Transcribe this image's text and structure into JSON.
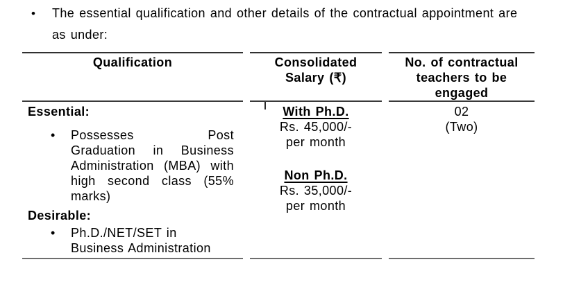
{
  "colors": {
    "text": "#000000",
    "rule_dark": "#303030",
    "rule_light": "#6e6e6e"
  },
  "intro": {
    "bullet": "•",
    "text": "The essential qualification and other details of the contractual appointment are\nas under:"
  },
  "table": {
    "headers": [
      "Qualification",
      "Consolidated\nSalary (₹)",
      "No. of contractual\nteachers to be\nengaged"
    ],
    "row": {
      "qualification": {
        "bullet": "•",
        "essential_label": "Essential:",
        "essential_item": "Possesses Post\nGraduation in Business\nAdministration (MBA) with\nhigh second class (55%\nmarks)",
        "desirable_label": "Desirable:",
        "desirable_item": "Ph.D./NET/SET in\nBusiness Administration"
      },
      "salary": {
        "with_phd": {
          "label": "With Ph.D.",
          "amount": "Rs. 45,000/-",
          "period": "per month"
        },
        "non_phd": {
          "label": "Non Ph.D.",
          "amount": "Rs. 35,000/-",
          "period": "per month"
        }
      },
      "teachers": {
        "count": "02",
        "words": "(Two)"
      }
    }
  }
}
